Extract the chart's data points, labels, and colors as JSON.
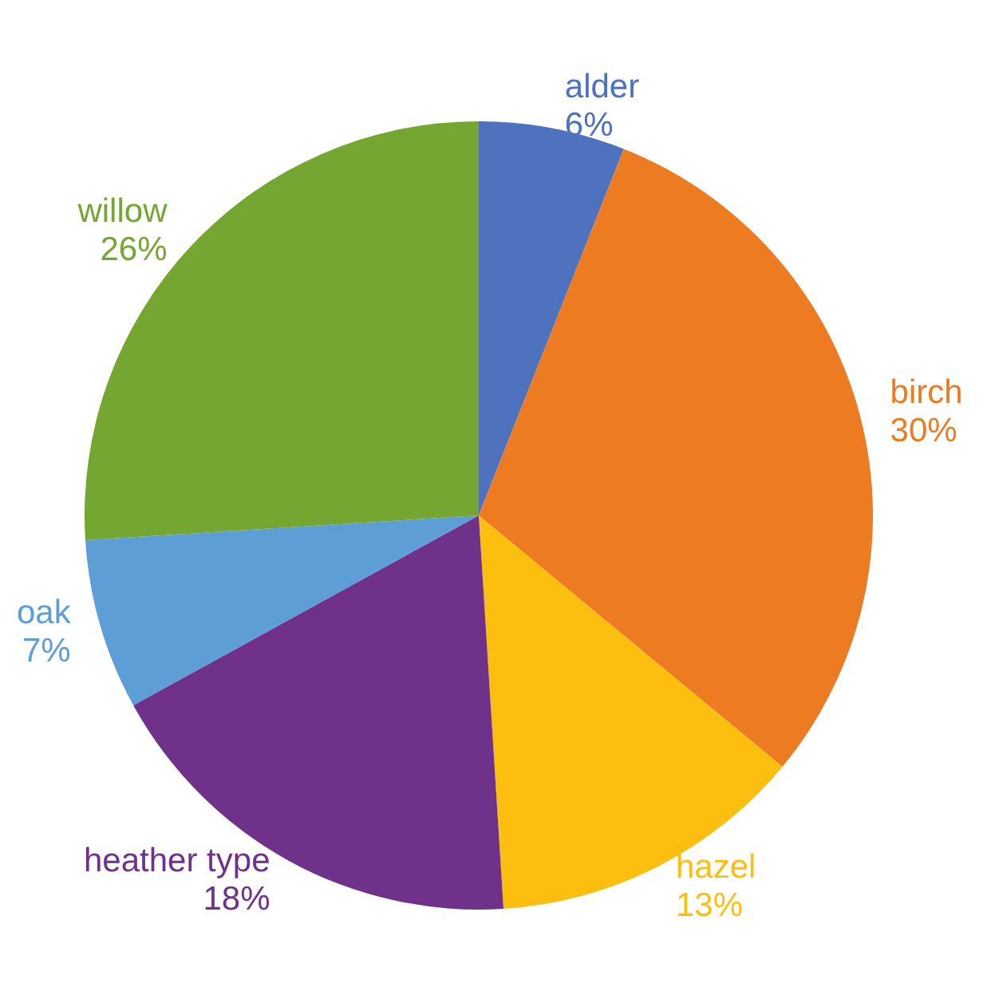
{
  "chart_data": {
    "type": "pie",
    "categories": [
      "alder",
      "birch",
      "hazel",
      "heather type",
      "oak",
      "willow"
    ],
    "values": [
      6,
      30,
      13,
      18,
      7,
      26
    ],
    "value_labels": [
      "6%",
      "30%",
      "13%",
      "18%",
      "7%",
      "26%"
    ],
    "colors": [
      "#4e72bd",
      "#ec7b22",
      "#fcbf0f",
      "#70318b",
      "#5d9ed6",
      "#75a632"
    ],
    "legend": false
  }
}
